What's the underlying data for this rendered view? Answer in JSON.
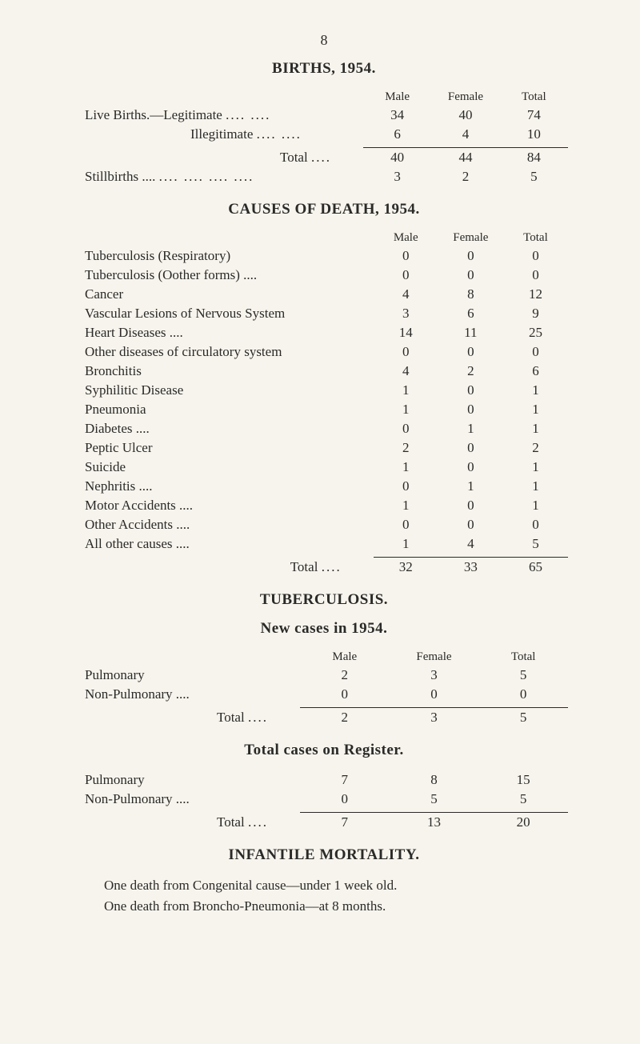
{
  "page_number": "8",
  "headers": {
    "male": "Male",
    "female": "Female",
    "total": "Total"
  },
  "births": {
    "title": "BIRTHS, 1954.",
    "rows": [
      {
        "label": "Live Births.—Legitimate",
        "m": "34",
        "f": "40",
        "t": "74"
      },
      {
        "label": "Illegitimate",
        "m": "6",
        "f": "4",
        "t": "10",
        "indent": true
      }
    ],
    "total_label": "Total",
    "total": {
      "m": "40",
      "f": "44",
      "t": "84"
    },
    "stillbirths": {
      "label": "Stillbirths ....",
      "m": "3",
      "f": "2",
      "t": "5"
    }
  },
  "causes": {
    "title": "CAUSES OF DEATH, 1954.",
    "rows": [
      {
        "label": "Tuberculosis (Respiratory)",
        "m": "0",
        "f": "0",
        "t": "0"
      },
      {
        "label": "Tuberculosis (Oother forms) ....",
        "m": "0",
        "f": "0",
        "t": "0"
      },
      {
        "label": "Cancer",
        "m": "4",
        "f": "8",
        "t": "12"
      },
      {
        "label": "Vascular Lesions of Nervous System",
        "m": "3",
        "f": "6",
        "t": "9"
      },
      {
        "label": "Heart Diseases ....",
        "m": "14",
        "f": "11",
        "t": "25"
      },
      {
        "label": "Other diseases of circulatory system",
        "m": "0",
        "f": "0",
        "t": "0"
      },
      {
        "label": "Bronchitis",
        "m": "4",
        "f": "2",
        "t": "6"
      },
      {
        "label": "Syphilitic Disease",
        "m": "1",
        "f": "0",
        "t": "1"
      },
      {
        "label": "Pneumonia",
        "m": "1",
        "f": "0",
        "t": "1"
      },
      {
        "label": "Diabetes ....",
        "m": "0",
        "f": "1",
        "t": "1"
      },
      {
        "label": "Peptic Ulcer",
        "m": "2",
        "f": "0",
        "t": "2"
      },
      {
        "label": "Suicide",
        "m": "1",
        "f": "0",
        "t": "1"
      },
      {
        "label": "Nephritis ....",
        "m": "0",
        "f": "1",
        "t": "1"
      },
      {
        "label": "Motor Accidents ....",
        "m": "1",
        "f": "0",
        "t": "1"
      },
      {
        "label": "Other Accidents ....",
        "m": "0",
        "f": "0",
        "t": "0"
      },
      {
        "label": "All other causes ....",
        "m": "1",
        "f": "4",
        "t": "5"
      }
    ],
    "total_label": "Total",
    "total": {
      "m": "32",
      "f": "33",
      "t": "65"
    }
  },
  "tb": {
    "title": "TUBERCULOSIS.",
    "subtitle": "New cases in 1954.",
    "rows": [
      {
        "label": "Pulmonary",
        "m": "2",
        "f": "3",
        "t": "5"
      },
      {
        "label": "Non-Pulmonary ....",
        "m": "0",
        "f": "0",
        "t": "0"
      }
    ],
    "total_label": "Total",
    "total": {
      "m": "2",
      "f": "3",
      "t": "5"
    },
    "reg_title": "Total cases on Register.",
    "reg_rows": [
      {
        "label": "Pulmonary",
        "m": "7",
        "f": "8",
        "t": "15"
      },
      {
        "label": "Non-Pulmonary ....",
        "m": "0",
        "f": "5",
        "t": "5"
      }
    ],
    "reg_total": {
      "m": "7",
      "f": "13",
      "t": "20"
    }
  },
  "infantile": {
    "title": "INFANTILE MORTALITY.",
    "line1": "One death from Congenital cause—under 1 week old.",
    "line2": "One death from Broncho-Pneumonia—at 8 months."
  }
}
